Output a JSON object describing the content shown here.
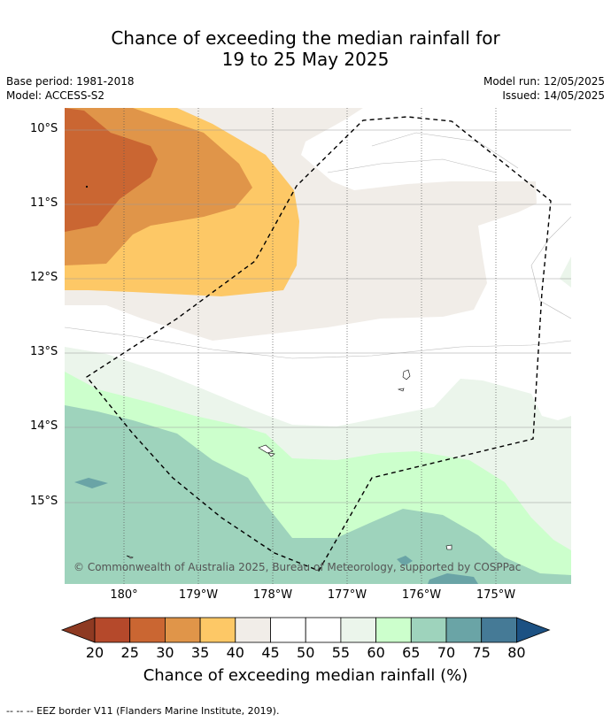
{
  "title_line1": "Chance of exceeding the median rainfall for",
  "title_line2": "19 to 25 May 2025",
  "base_period": "Base period: 1981-2018",
  "model": "Model: ACCESS-S2",
  "model_run": "Model run: 12/05/2025",
  "issued": "Issued: 14/05/2025",
  "lat_ticks": [
    "10°S",
    "11°S",
    "12°S",
    "13°S",
    "14°S",
    "15°S"
  ],
  "lon_ticks": [
    "180°",
    "179°W",
    "178°W",
    "177°W",
    "176°W",
    "175°W"
  ],
  "copyright": "© Commonwealth of Australia 2025, Bureau of Meteorology, supported by COSPPac",
  "colorbar": {
    "labels": [
      "20",
      "25",
      "30",
      "35",
      "40",
      "45",
      "50",
      "55",
      "60",
      "65",
      "70",
      "75",
      "80"
    ],
    "colors": [
      "#8e3a22",
      "#b5492b",
      "#ca6632",
      "#e09549",
      "#fdc866",
      "#f1ede8",
      "#ffffff",
      "#ffffff",
      "#ebf5eb",
      "#ccffcc",
      "#9ed3bc",
      "#6aa4a6",
      "#457a96",
      "#1c5183"
    ],
    "title": "Chance of exceeding median rainfall (%)"
  },
  "footnote": "--  --  -- EEZ border V11 (Flanders Marine Institute, 2019)."
}
